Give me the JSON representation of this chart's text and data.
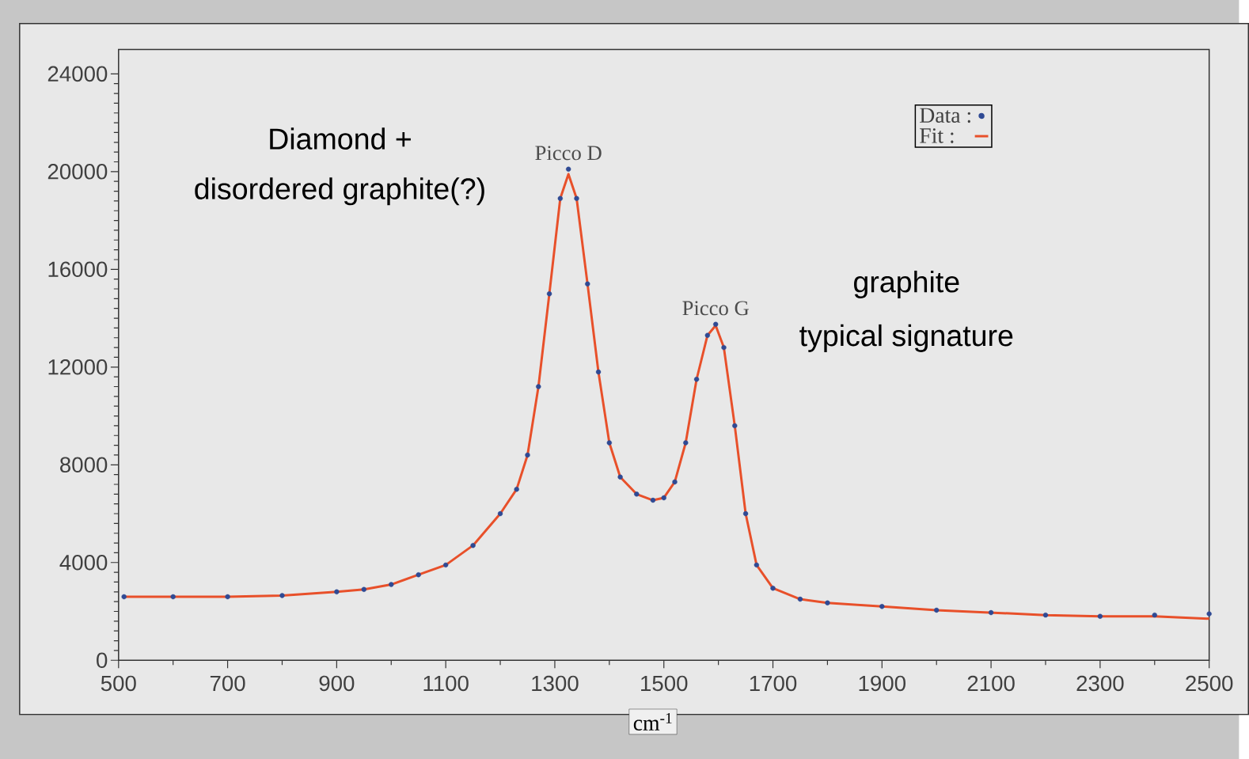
{
  "chart_data": {
    "type": "scatter",
    "xlabel": "cm$^{-1}$",
    "x": [
      510,
      600,
      700,
      800,
      900,
      950,
      1000,
      1050,
      1100,
      1150,
      1200,
      1230,
      1250,
      1270,
      1290,
      1310,
      1325,
      1340,
      1360,
      1380,
      1400,
      1420,
      1450,
      1480,
      1500,
      1520,
      1540,
      1560,
      1580,
      1595,
      1610,
      1630,
      1650,
      1670,
      1700,
      1750,
      1800,
      1900,
      2000,
      2100,
      2200,
      2300,
      2400,
      2500
    ],
    "series": [
      {
        "name": "Data :",
        "color": "#2f4a94",
        "marker": "circle",
        "values": [
          2600,
          2600,
          2600,
          2650,
          2800,
          2900,
          3100,
          3500,
          3900,
          4700,
          6000,
          7000,
          8400,
          11200,
          15000,
          18900,
          20100,
          18900,
          15400,
          11800,
          8900,
          7500,
          6800,
          6550,
          6650,
          7300,
          8900,
          11500,
          13300,
          13750,
          12800,
          9600,
          6000,
          3900,
          2950,
          2500,
          2350,
          2200,
          2050,
          1950,
          1850,
          1800,
          1850,
          1900
        ]
      },
      {
        "name": "Fit :",
        "type": "line",
        "color": "#e8502a",
        "line_style": "solid",
        "values": [
          2600,
          2600,
          2600,
          2650,
          2800,
          2900,
          3100,
          3500,
          3900,
          4700,
          6000,
          7000,
          8400,
          11200,
          15000,
          18900,
          19900,
          18900,
          15400,
          11800,
          8900,
          7500,
          6800,
          6550,
          6650,
          7300,
          8900,
          11500,
          13300,
          13700,
          12800,
          9600,
          6000,
          3900,
          2950,
          2500,
          2350,
          2200,
          2050,
          1950,
          1850,
          1800,
          1800,
          1700
        ]
      }
    ],
    "xlim": [
      500,
      2500
    ],
    "ylim": [
      0,
      25000
    ],
    "xticks": [
      500,
      700,
      900,
      1100,
      1300,
      1500,
      1700,
      1900,
      2100,
      2300,
      2500
    ],
    "yticks": [
      0,
      4000,
      8000,
      12000,
      16000,
      20000,
      24000
    ],
    "grid": false,
    "legend": "top right",
    "annotations": [
      {
        "text": "Picco D",
        "x": 1325,
        "y": 20100
      },
      {
        "text": "Picco G",
        "x": 1595,
        "y": 13750
      },
      "Diamond +",
      "disordered graphite(?)",
      "graphite",
      "typical signature"
    ]
  }
}
